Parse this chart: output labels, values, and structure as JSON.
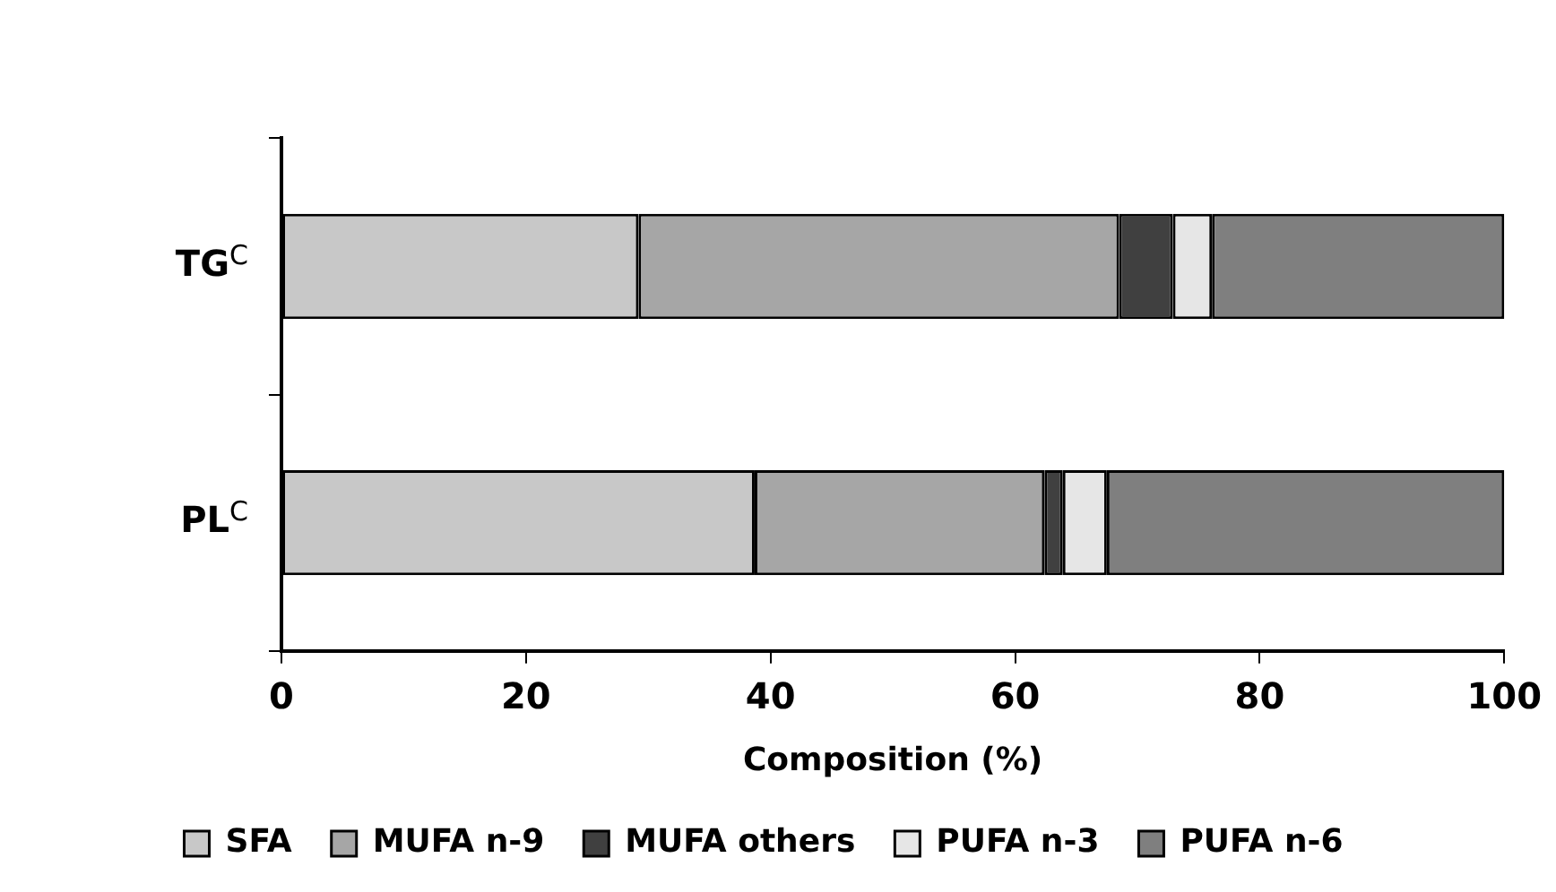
{
  "chart_data": {
    "type": "bar",
    "orientation": "horizontal",
    "stacked": true,
    "xlabel": "Composition (%)",
    "categories": [
      "TG$^{C}$",
      "PL$^{C}$"
    ],
    "series": [
      {
        "name": "SFA",
        "color": "#c8c8c8",
        "values": [
          29.2,
          38.7
        ]
      },
      {
        "name": "MUFA n-9",
        "color": "#a6a6a6",
        "values": [
          39.3,
          23.7
        ]
      },
      {
        "name": "MUFA others",
        "color": "#404040",
        "values": [
          4.4,
          1.5
        ]
      },
      {
        "name": "PUFA n-3",
        "color": "#e6e6e6",
        "values": [
          3.2,
          3.6
        ]
      },
      {
        "name": "PUFA n-6",
        "color": "#7f7f7f",
        "values": [
          23.9,
          32.5
        ]
      }
    ],
    "xlim": [
      0,
      100
    ],
    "xticks": [
      0,
      20,
      40,
      60,
      80,
      100
    ],
    "grid": false,
    "legend": "bottom"
  }
}
